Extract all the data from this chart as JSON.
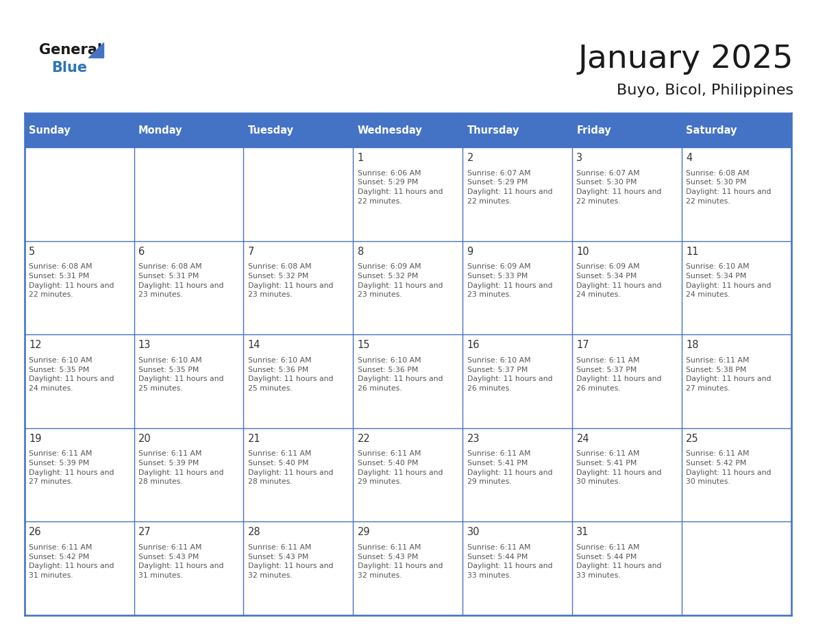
{
  "title": "January 2025",
  "subtitle": "Buyo, Bicol, Philippines",
  "header_bg_color": "#4472C4",
  "header_text_color": "#FFFFFF",
  "cell_bg_color": "#FFFFFF",
  "border_color": "#4472C4",
  "day_number_color": "#333333",
  "cell_text_color": "#555555",
  "days_of_week": [
    "Sunday",
    "Monday",
    "Tuesday",
    "Wednesday",
    "Thursday",
    "Friday",
    "Saturday"
  ],
  "title_color": "#1a1a1a",
  "subtitle_color": "#1a1a1a",
  "logo_general_color": "#1a1a1a",
  "logo_blue_color": "#2E75B6",
  "logo_triangle_color": "#4472C4",
  "calendar": [
    [
      {
        "day": "",
        "sunrise": "",
        "sunset": "",
        "daylight": ""
      },
      {
        "day": "",
        "sunrise": "",
        "sunset": "",
        "daylight": ""
      },
      {
        "day": "",
        "sunrise": "",
        "sunset": "",
        "daylight": ""
      },
      {
        "day": "1",
        "sunrise": "6:06 AM",
        "sunset": "5:29 PM",
        "daylight": "11 hours and 22 minutes."
      },
      {
        "day": "2",
        "sunrise": "6:07 AM",
        "sunset": "5:29 PM",
        "daylight": "11 hours and 22 minutes."
      },
      {
        "day": "3",
        "sunrise": "6:07 AM",
        "sunset": "5:30 PM",
        "daylight": "11 hours and 22 minutes."
      },
      {
        "day": "4",
        "sunrise": "6:08 AM",
        "sunset": "5:30 PM",
        "daylight": "11 hours and 22 minutes."
      }
    ],
    [
      {
        "day": "5",
        "sunrise": "6:08 AM",
        "sunset": "5:31 PM",
        "daylight": "11 hours and 22 minutes."
      },
      {
        "day": "6",
        "sunrise": "6:08 AM",
        "sunset": "5:31 PM",
        "daylight": "11 hours and 23 minutes."
      },
      {
        "day": "7",
        "sunrise": "6:08 AM",
        "sunset": "5:32 PM",
        "daylight": "11 hours and 23 minutes."
      },
      {
        "day": "8",
        "sunrise": "6:09 AM",
        "sunset": "5:32 PM",
        "daylight": "11 hours and 23 minutes."
      },
      {
        "day": "9",
        "sunrise": "6:09 AM",
        "sunset": "5:33 PM",
        "daylight": "11 hours and 23 minutes."
      },
      {
        "day": "10",
        "sunrise": "6:09 AM",
        "sunset": "5:34 PM",
        "daylight": "11 hours and 24 minutes."
      },
      {
        "day": "11",
        "sunrise": "6:10 AM",
        "sunset": "5:34 PM",
        "daylight": "11 hours and 24 minutes."
      }
    ],
    [
      {
        "day": "12",
        "sunrise": "6:10 AM",
        "sunset": "5:35 PM",
        "daylight": "11 hours and 24 minutes."
      },
      {
        "day": "13",
        "sunrise": "6:10 AM",
        "sunset": "5:35 PM",
        "daylight": "11 hours and 25 minutes."
      },
      {
        "day": "14",
        "sunrise": "6:10 AM",
        "sunset": "5:36 PM",
        "daylight": "11 hours and 25 minutes."
      },
      {
        "day": "15",
        "sunrise": "6:10 AM",
        "sunset": "5:36 PM",
        "daylight": "11 hours and 26 minutes."
      },
      {
        "day": "16",
        "sunrise": "6:10 AM",
        "sunset": "5:37 PM",
        "daylight": "11 hours and 26 minutes."
      },
      {
        "day": "17",
        "sunrise": "6:11 AM",
        "sunset": "5:37 PM",
        "daylight": "11 hours and 26 minutes."
      },
      {
        "day": "18",
        "sunrise": "6:11 AM",
        "sunset": "5:38 PM",
        "daylight": "11 hours and 27 minutes."
      }
    ],
    [
      {
        "day": "19",
        "sunrise": "6:11 AM",
        "sunset": "5:39 PM",
        "daylight": "11 hours and 27 minutes."
      },
      {
        "day": "20",
        "sunrise": "6:11 AM",
        "sunset": "5:39 PM",
        "daylight": "11 hours and 28 minutes."
      },
      {
        "day": "21",
        "sunrise": "6:11 AM",
        "sunset": "5:40 PM",
        "daylight": "11 hours and 28 minutes."
      },
      {
        "day": "22",
        "sunrise": "6:11 AM",
        "sunset": "5:40 PM",
        "daylight": "11 hours and 29 minutes."
      },
      {
        "day": "23",
        "sunrise": "6:11 AM",
        "sunset": "5:41 PM",
        "daylight": "11 hours and 29 minutes."
      },
      {
        "day": "24",
        "sunrise": "6:11 AM",
        "sunset": "5:41 PM",
        "daylight": "11 hours and 30 minutes."
      },
      {
        "day": "25",
        "sunrise": "6:11 AM",
        "sunset": "5:42 PM",
        "daylight": "11 hours and 30 minutes."
      }
    ],
    [
      {
        "day": "26",
        "sunrise": "6:11 AM",
        "sunset": "5:42 PM",
        "daylight": "11 hours and 31 minutes."
      },
      {
        "day": "27",
        "sunrise": "6:11 AM",
        "sunset": "5:43 PM",
        "daylight": "11 hours and 31 minutes."
      },
      {
        "day": "28",
        "sunrise": "6:11 AM",
        "sunset": "5:43 PM",
        "daylight": "11 hours and 32 minutes."
      },
      {
        "day": "29",
        "sunrise": "6:11 AM",
        "sunset": "5:43 PM",
        "daylight": "11 hours and 32 minutes."
      },
      {
        "day": "30",
        "sunrise": "6:11 AM",
        "sunset": "5:44 PM",
        "daylight": "11 hours and 33 minutes."
      },
      {
        "day": "31",
        "sunrise": "6:11 AM",
        "sunset": "5:44 PM",
        "daylight": "11 hours and 33 minutes."
      },
      {
        "day": "",
        "sunrise": "",
        "sunset": "",
        "daylight": ""
      }
    ]
  ]
}
